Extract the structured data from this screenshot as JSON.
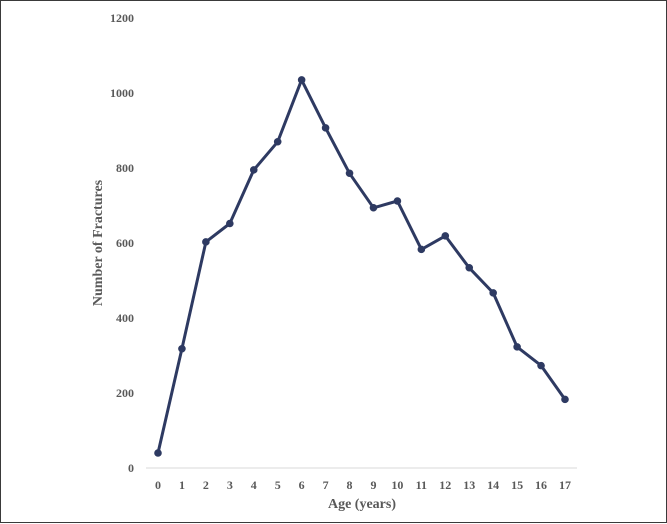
{
  "chart_data": {
    "type": "line",
    "title": "",
    "xlabel": "Age (years)",
    "ylabel": "Number of Fractures",
    "categories": [
      "0",
      "1",
      "2",
      "3",
      "4",
      "5",
      "6",
      "7",
      "8",
      "9",
      "10",
      "11",
      "12",
      "13",
      "14",
      "15",
      "16",
      "17"
    ],
    "series": [
      {
        "values": [
          40,
          318,
          603,
          652,
          795,
          870,
          1035,
          907,
          786,
          694,
          712,
          583,
          619,
          534,
          467,
          323,
          273,
          183
        ]
      }
    ],
    "ylim": [
      0,
      1200
    ],
    "yticks": [
      "0",
      "200",
      "400",
      "600",
      "800",
      "1000",
      "1200"
    ],
    "grid": false,
    "legend": "none",
    "line_color": "#2e3a62"
  }
}
